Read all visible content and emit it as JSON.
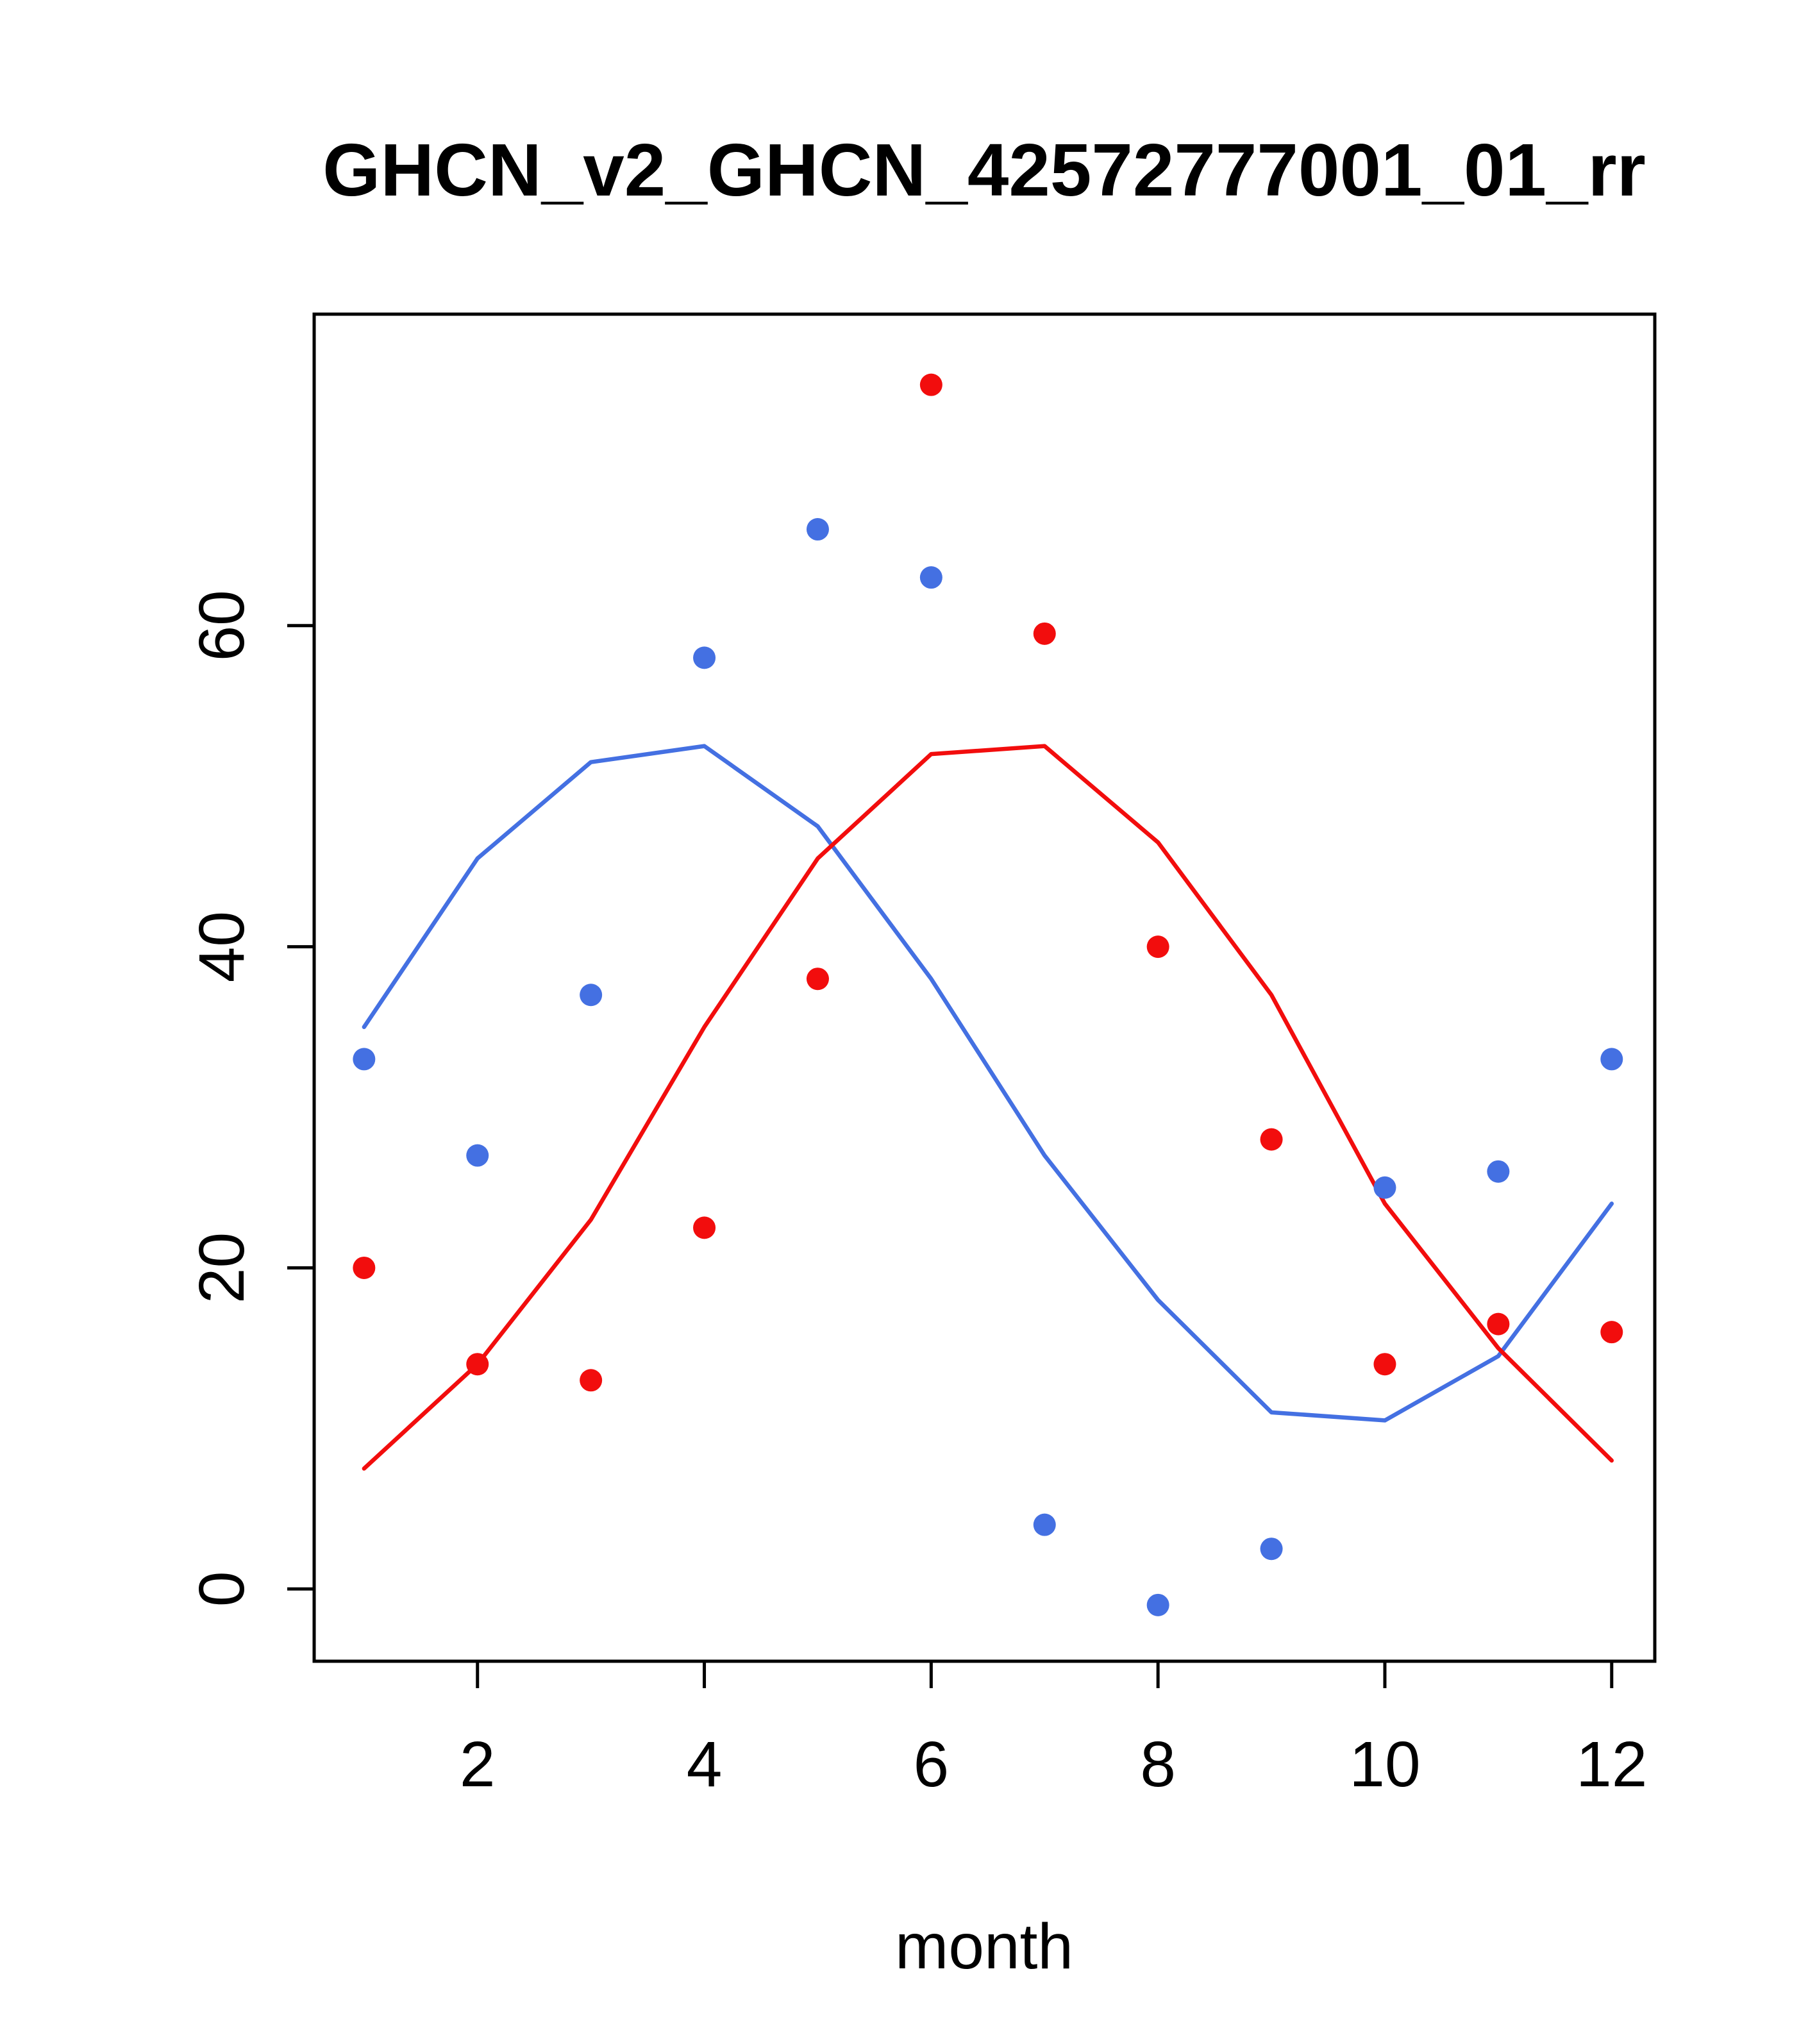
{
  "chart_data": {
    "type": "line",
    "title": "GHCN_v2_GHCN_42572777001_01_rr",
    "xlabel": "month",
    "ylabel": "",
    "x": [
      1,
      2,
      3,
      4,
      5,
      6,
      7,
      8,
      9,
      10,
      11,
      12
    ],
    "xticks": [
      2,
      4,
      6,
      8,
      10,
      12
    ],
    "yticks": [
      0,
      20,
      40,
      60
    ],
    "xlim": [
      0.56,
      12.38
    ],
    "ylim": [
      -4.5,
      79.4
    ],
    "grid": false,
    "legend": "none",
    "colors": {
      "blue": "#4470E2",
      "red": "#F20D0D"
    },
    "series": [
      {
        "name": "blue-points",
        "kind": "scatter",
        "color": "#4470E2",
        "values": [
          33,
          27,
          37,
          58,
          66,
          63,
          4,
          -1,
          2.5,
          25,
          26,
          33
        ]
      },
      {
        "name": "red-points",
        "kind": "scatter",
        "color": "#F20D0D",
        "values": [
          20,
          14,
          13,
          22.5,
          38,
          75,
          59.5,
          40,
          28,
          14,
          16.5,
          16
        ]
      },
      {
        "name": "blue-line",
        "kind": "line",
        "color": "#4470E2",
        "values": [
          35,
          45.5,
          51.5,
          52.5,
          47.5,
          38,
          27,
          18,
          11,
          10.5,
          14.5,
          24
        ]
      },
      {
        "name": "red-line",
        "kind": "line",
        "color": "#F20D0D",
        "values": [
          7.5,
          14,
          23,
          35,
          45.5,
          52,
          52.5,
          46.5,
          37,
          24,
          15,
          8
        ]
      }
    ]
  }
}
